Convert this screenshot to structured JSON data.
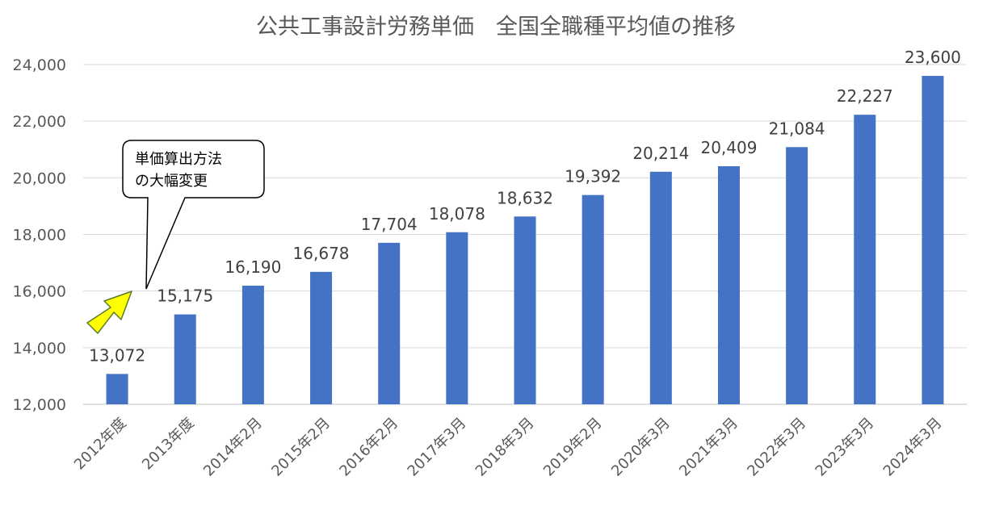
{
  "chart_data": {
    "type": "bar",
    "title": "公共工事設計労務単価　全国全職種平均値の推移",
    "xlabel": "",
    "ylabel": "",
    "categories": [
      "2012年度",
      "2013年度",
      "2014年2月",
      "2015年2月",
      "2016年2月",
      "2017年3月",
      "2018年3月",
      "2019年2月",
      "2020年3月",
      "2021年3月",
      "2022年3月",
      "2023年3月",
      "2024年3月"
    ],
    "values": [
      13072,
      15175,
      16190,
      16678,
      17704,
      18078,
      18632,
      19392,
      20214,
      20409,
      21084,
      22227,
      23600
    ],
    "value_labels": [
      "13,072",
      "15,175",
      "16,190",
      "16,678",
      "17,704",
      "18,078",
      "18,632",
      "19,392",
      "20,214",
      "20,409",
      "21,084",
      "22,227",
      "23,600"
    ],
    "ylim": [
      12000,
      24000
    ],
    "yticks": [
      12000,
      14000,
      16000,
      18000,
      20000,
      22000,
      24000
    ],
    "ytick_labels": [
      "12,000",
      "14,000",
      "16,000",
      "18,000",
      "20,000",
      "22,000",
      "24,000"
    ],
    "grid": true,
    "bar_color": "#4472C4",
    "annotation": {
      "lines": [
        "単価算出方法",
        "の大幅変更"
      ],
      "arrow_color": "#FFFF00"
    }
  }
}
